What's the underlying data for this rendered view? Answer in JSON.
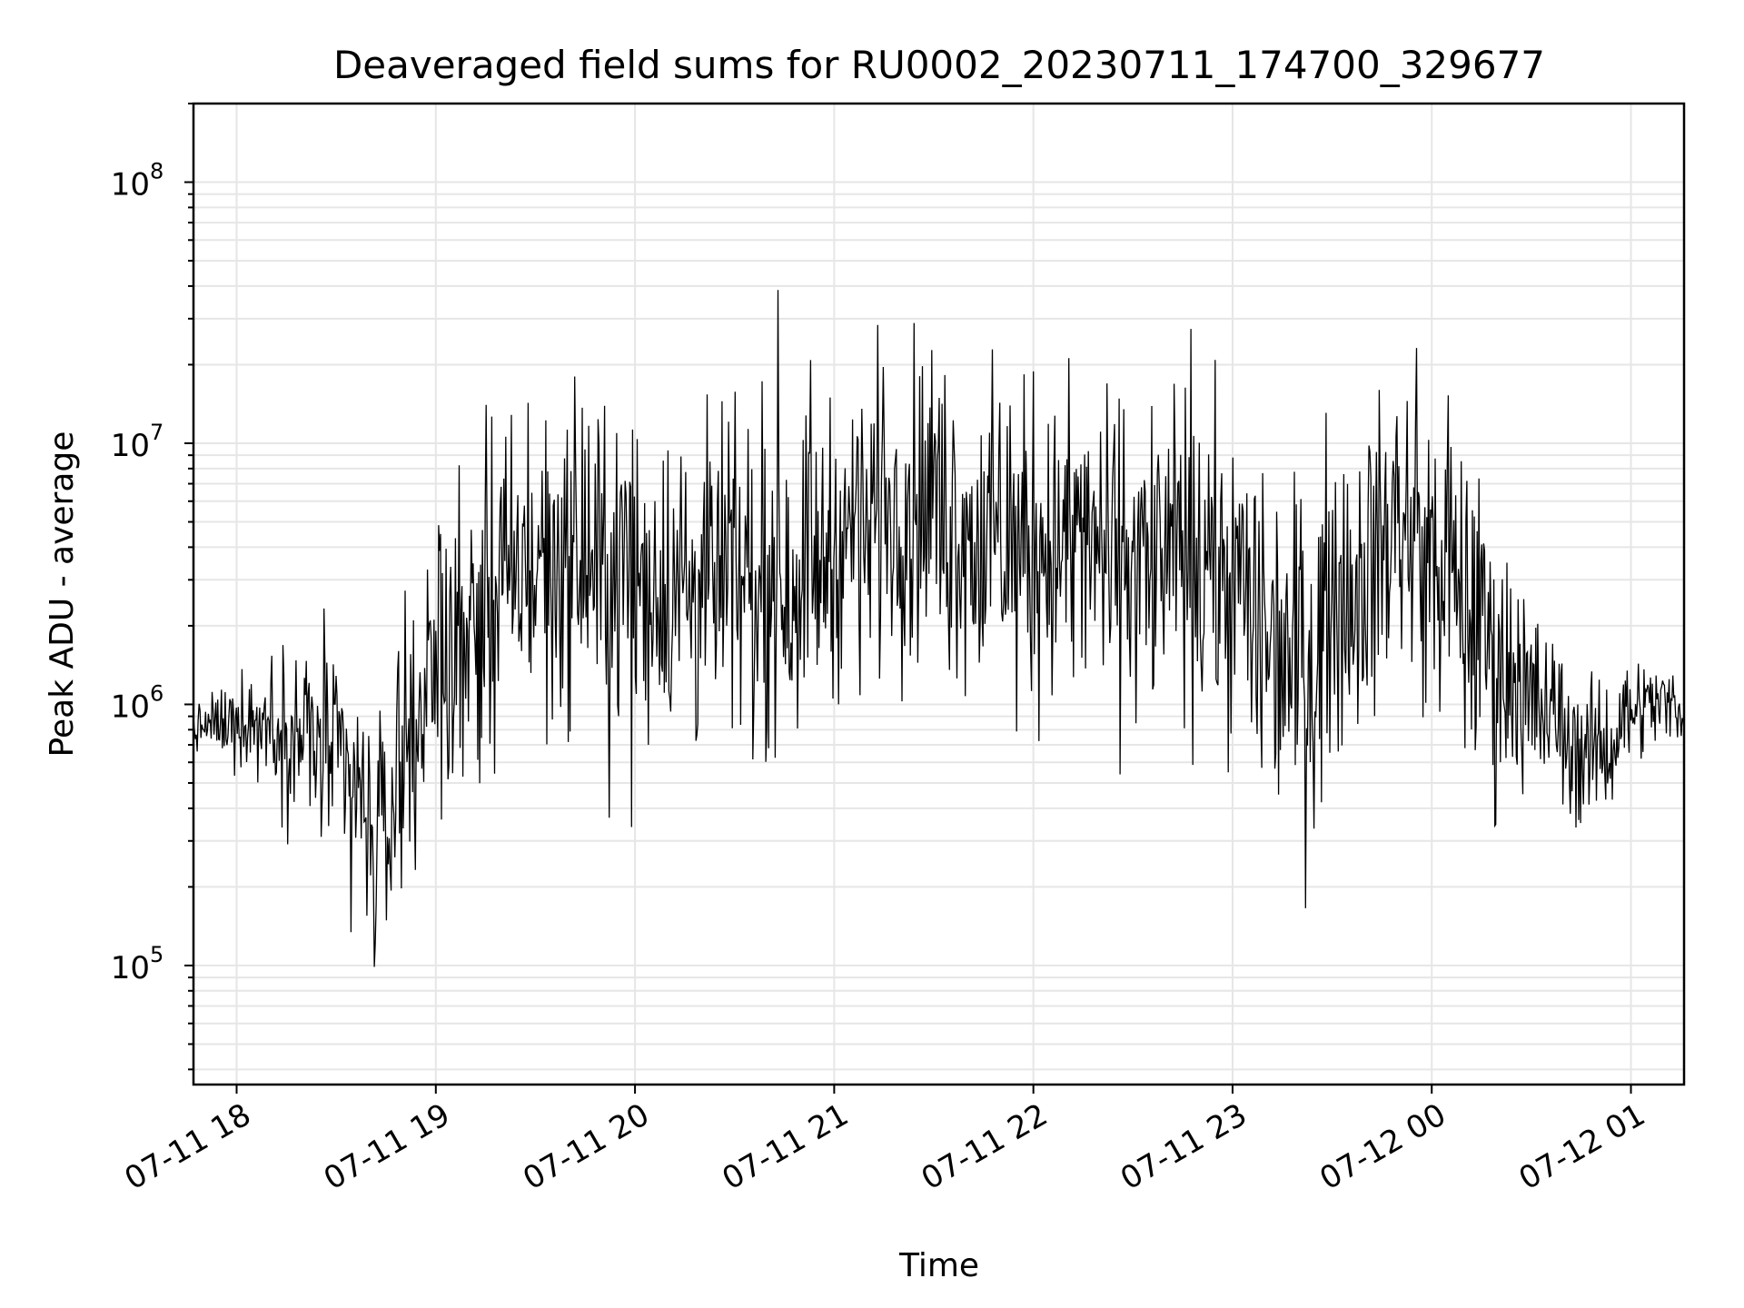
{
  "chart_data": {
    "type": "line",
    "title": "Deaveraged field sums for RU0002_20230711_174700_329677",
    "xlabel": "Time",
    "ylabel": "Peak ADU - average",
    "yscale": "log",
    "ylim": [
      35000,
      200000000
    ],
    "xlim": [
      "2023-07-11 17:47:00",
      "2023-07-12 01:16:00"
    ],
    "grid": true,
    "grid_minor": true,
    "line_color": "#000000",
    "x_ticks": [
      {
        "value": "2023-07-11 18:00",
        "label": "07-11 18"
      },
      {
        "value": "2023-07-11 19:00",
        "label": "07-11 19"
      },
      {
        "value": "2023-07-11 20:00",
        "label": "07-11 20"
      },
      {
        "value": "2023-07-11 21:00",
        "label": "07-11 21"
      },
      {
        "value": "2023-07-11 22:00",
        "label": "07-11 22"
      },
      {
        "value": "2023-07-11 23:00",
        "label": "07-11 23"
      },
      {
        "value": "2023-07-12 00:00",
        "label": "07-12 00"
      },
      {
        "value": "2023-07-12 01:00",
        "label": "07-12 01"
      }
    ],
    "y_ticks": [
      {
        "value": 100000,
        "base": "10",
        "exp": "5"
      },
      {
        "value": 1000000,
        "base": "10",
        "exp": "6"
      },
      {
        "value": 10000000,
        "base": "10",
        "exp": "7"
      },
      {
        "value": 100000000,
        "base": "10",
        "exp": "8"
      }
    ],
    "series": [
      {
        "x": [
          "2023-07-11 17:47:00",
          "2023-07-11 17:55:00",
          "2023-07-11 18:05:00",
          "2023-07-11 18:15:00",
          "2023-07-11 18:25:00",
          "2023-07-11 18:35:00",
          "2023-07-11 18:42:00",
          "2023-07-11 18:50:00",
          "2023-07-11 19:00:00",
          "2023-07-11 19:15:00",
          "2023-07-11 19:30:00",
          "2023-07-11 19:45:00",
          "2023-07-11 20:00:00",
          "2023-07-11 20:15:00",
          "2023-07-11 20:30:00",
          "2023-07-11 20:45:00",
          "2023-07-11 21:00:00",
          "2023-07-11 21:15:00",
          "2023-07-11 21:30:00",
          "2023-07-11 21:45:00",
          "2023-07-11 22:00:00",
          "2023-07-11 22:15:00",
          "2023-07-11 22:30:00",
          "2023-07-11 22:45:00",
          "2023-07-11 23:00:00",
          "2023-07-11 23:10:00",
          "2023-07-11 23:20:00",
          "2023-07-11 23:35:00",
          "2023-07-11 23:50:00",
          "2023-07-12 00:05:00",
          "2023-07-12 00:20:00",
          "2023-07-12 00:35:00",
          "2023-07-12 00:50:00",
          "2023-07-12 01:00:00",
          "2023-07-12 01:16:00"
        ],
        "center": [
          800000,
          850000,
          900000,
          800000,
          700000,
          500000,
          250000,
          700000,
          1500000,
          2500000,
          3500000,
          3500000,
          3000000,
          2800000,
          3000000,
          3000000,
          4000000,
          6000000,
          6000000,
          4000000,
          4000000,
          4000000,
          3500000,
          3500000,
          3000000,
          2000000,
          1500000,
          3000000,
          5000000,
          3000000,
          1500000,
          900000,
          600000,
          1000000,
          1000000
        ],
        "spread_decades": [
          0.15,
          0.2,
          0.3,
          0.5,
          0.6,
          0.7,
          0.7,
          0.7,
          0.8,
          0.9,
          0.9,
          0.9,
          0.9,
          0.9,
          0.9,
          0.9,
          0.8,
          0.9,
          0.9,
          0.9,
          0.9,
          0.9,
          0.9,
          0.9,
          0.9,
          1.0,
          1.0,
          0.9,
          0.8,
          0.9,
          0.8,
          0.5,
          0.4,
          0.3,
          0.2
        ]
      }
    ]
  }
}
